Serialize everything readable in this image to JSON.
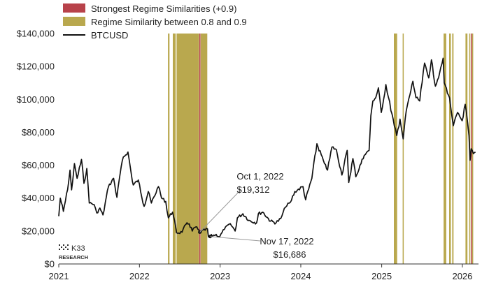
{
  "chart_data": {
    "type": "line",
    "title": "",
    "xlabel": "",
    "ylabel": "",
    "x_tick_labels": [
      "2021",
      "2022",
      "2023",
      "2024",
      "2025",
      "2026"
    ],
    "y_tick_labels": [
      "$0",
      "$20,000",
      "$40,000",
      "$60,000",
      "$80,000",
      "$100,000",
      "$120,000",
      "$140,000"
    ],
    "ylim": [
      0,
      140000
    ],
    "xlim": [
      "2021-01-01",
      "2026-03-15"
    ],
    "grid": false,
    "legend": {
      "position": "top-left",
      "entries": [
        {
          "label": "Strongest Regime Similarities (+0.9)",
          "type": "swatch",
          "color": "#b8424a"
        },
        {
          "label": "Regime Similarity between 0.8 and 0.9",
          "type": "swatch",
          "color": "#b9a84e"
        },
        {
          "label": "BTCUSD",
          "type": "line",
          "color": "#111111"
        }
      ]
    },
    "series": [
      {
        "name": "BTCUSD",
        "color": "#111111",
        "points": [
          [
            "2021-01-01",
            29000
          ],
          [
            "2021-01-08",
            40000
          ],
          [
            "2021-01-22",
            32000
          ],
          [
            "2021-02-10",
            45000
          ],
          [
            "2021-02-21",
            57000
          ],
          [
            "2021-02-28",
            45000
          ],
          [
            "2021-03-13",
            61000
          ],
          [
            "2021-03-25",
            52000
          ],
          [
            "2021-04-14",
            63500
          ],
          [
            "2021-04-25",
            49000
          ],
          [
            "2021-05-08",
            58000
          ],
          [
            "2021-05-19",
            37000
          ],
          [
            "2021-06-10",
            36000
          ],
          [
            "2021-06-22",
            31000
          ],
          [
            "2021-07-06",
            34000
          ],
          [
            "2021-07-20",
            29800
          ],
          [
            "2021-08-14",
            47000
          ],
          [
            "2021-09-06",
            52000
          ],
          [
            "2021-09-21",
            40500
          ],
          [
            "2021-10-06",
            55000
          ],
          [
            "2021-10-20",
            65000
          ],
          [
            "2021-11-10",
            68000
          ],
          [
            "2021-11-26",
            54000
          ],
          [
            "2021-12-04",
            48000
          ],
          [
            "2021-12-27",
            51000
          ],
          [
            "2022-01-22",
            35000
          ],
          [
            "2022-02-10",
            44000
          ],
          [
            "2022-02-24",
            37000
          ],
          [
            "2022-03-28",
            47000
          ],
          [
            "2022-04-11",
            40000
          ],
          [
            "2022-04-30",
            38000
          ],
          [
            "2022-05-12",
            28000
          ],
          [
            "2022-05-31",
            31500
          ],
          [
            "2022-06-18",
            18900
          ],
          [
            "2022-07-13",
            19300
          ],
          [
            "2022-07-30",
            24000
          ],
          [
            "2022-08-14",
            24400
          ],
          [
            "2022-08-28",
            20000
          ],
          [
            "2022-09-13",
            22500
          ],
          [
            "2022-10-01",
            19312
          ],
          [
            "2022-10-25",
            20500
          ],
          [
            "2022-11-05",
            21300
          ],
          [
            "2022-11-09",
            16500
          ],
          [
            "2022-11-17",
            16686
          ],
          [
            "2022-12-14",
            18000
          ],
          [
            "2022-12-30",
            16500
          ],
          [
            "2023-01-20",
            21000
          ],
          [
            "2023-02-16",
            24500
          ],
          [
            "2023-03-10",
            20000
          ],
          [
            "2023-03-20",
            28000
          ],
          [
            "2023-04-14",
            30500
          ],
          [
            "2023-05-12",
            26500
          ],
          [
            "2023-06-15",
            25000
          ],
          [
            "2023-06-23",
            30500
          ],
          [
            "2023-07-13",
            31500
          ],
          [
            "2023-08-17",
            26000
          ],
          [
            "2023-09-11",
            25000
          ],
          [
            "2023-10-02",
            27500
          ],
          [
            "2023-10-24",
            34500
          ],
          [
            "2023-11-15",
            37500
          ],
          [
            "2023-12-05",
            44000
          ],
          [
            "2024-01-11",
            47000
          ],
          [
            "2024-01-23",
            39000
          ],
          [
            "2024-02-20",
            52000
          ],
          [
            "2024-03-14",
            73000
          ],
          [
            "2024-04-17",
            61000
          ],
          [
            "2024-05-01",
            57000
          ],
          [
            "2024-05-21",
            71000
          ],
          [
            "2024-06-10",
            69500
          ],
          [
            "2024-07-05",
            54000
          ],
          [
            "2024-07-29",
            69000
          ],
          [
            "2024-08-05",
            49500
          ],
          [
            "2024-08-24",
            64000
          ],
          [
            "2024-09-06",
            53000
          ],
          [
            "2024-10-14",
            66000
          ],
          [
            "2024-11-05",
            69000
          ],
          [
            "2024-11-13",
            90000
          ],
          [
            "2024-11-22",
            99000
          ],
          [
            "2024-12-05",
            101000
          ],
          [
            "2024-12-17",
            107000
          ],
          [
            "2024-12-30",
            92000
          ],
          [
            "2025-01-20",
            109000
          ],
          [
            "2025-02-01",
            101000
          ],
          [
            "2025-02-27",
            84000
          ],
          [
            "2025-03-10",
            78000
          ],
          [
            "2025-03-25",
            88000
          ],
          [
            "2025-04-08",
            76000
          ],
          [
            "2025-04-22",
            93000
          ],
          [
            "2025-05-09",
            103000
          ],
          [
            "2025-05-22",
            111000
          ],
          [
            "2025-06-05",
            101000
          ],
          [
            "2025-06-22",
            99000
          ],
          [
            "2025-07-14",
            122000
          ],
          [
            "2025-08-02",
            113000
          ],
          [
            "2025-08-14",
            124000
          ],
          [
            "2025-09-01",
            108000
          ],
          [
            "2025-09-20",
            116000
          ],
          [
            "2025-10-06",
            125000
          ],
          [
            "2025-10-11",
            110000
          ],
          [
            "2025-11-04",
            101000
          ],
          [
            "2025-11-21",
            84000
          ],
          [
            "2025-12-10",
            92000
          ],
          [
            "2025-12-31",
            87000
          ],
          [
            "2026-01-14",
            97000
          ],
          [
            "2026-01-31",
            78000
          ],
          [
            "2026-02-05",
            63000
          ],
          [
            "2026-02-10",
            70000
          ],
          [
            "2026-02-20",
            67000
          ],
          [
            "2026-03-01",
            68000
          ]
        ]
      }
    ],
    "regime_bands": [
      {
        "start": "2022-05-10",
        "end": "2022-05-17",
        "level": "0.8-0.9"
      },
      {
        "start": "2022-06-01",
        "end": "2022-06-14",
        "level": "0.8-0.9"
      },
      {
        "start": "2022-06-18",
        "end": "2022-09-28",
        "level": "0.8-0.9"
      },
      {
        "start": "2022-09-29",
        "end": "2022-10-04",
        "level": "+0.9"
      },
      {
        "start": "2022-10-05",
        "end": "2022-11-04",
        "level": "0.8-0.9"
      },
      {
        "start": "2025-02-25",
        "end": "2025-03-12",
        "level": "0.8-0.9"
      },
      {
        "start": "2025-04-06",
        "end": "2025-04-10",
        "level": "0.8-0.9"
      },
      {
        "start": "2025-10-08",
        "end": "2025-10-20",
        "level": "0.8-0.9"
      },
      {
        "start": "2025-11-02",
        "end": "2025-11-10",
        "level": "0.8-0.9"
      },
      {
        "start": "2025-11-16",
        "end": "2025-11-22",
        "level": "0.8-0.9"
      },
      {
        "start": "2026-01-15",
        "end": "2026-01-24",
        "level": "0.8-0.9"
      },
      {
        "start": "2026-02-01",
        "end": "2026-02-06",
        "level": "0.8-0.9"
      },
      {
        "start": "2026-02-09",
        "end": "2026-02-13",
        "level": "+0.9"
      },
      {
        "start": "2026-02-14",
        "end": "2026-02-19",
        "level": "0.8-0.9"
      }
    ],
    "annotations": [
      {
        "date_label": "Oct 1, 2022",
        "value_label": "$19,312",
        "x": "2022-10-01",
        "y": 19312
      },
      {
        "date_label": "Nov 17, 2022",
        "value_label": "$16,686",
        "x": "2022-11-17",
        "y": 16686
      }
    ]
  },
  "brand": {
    "name": "K33",
    "sub": "RESEARCH"
  }
}
